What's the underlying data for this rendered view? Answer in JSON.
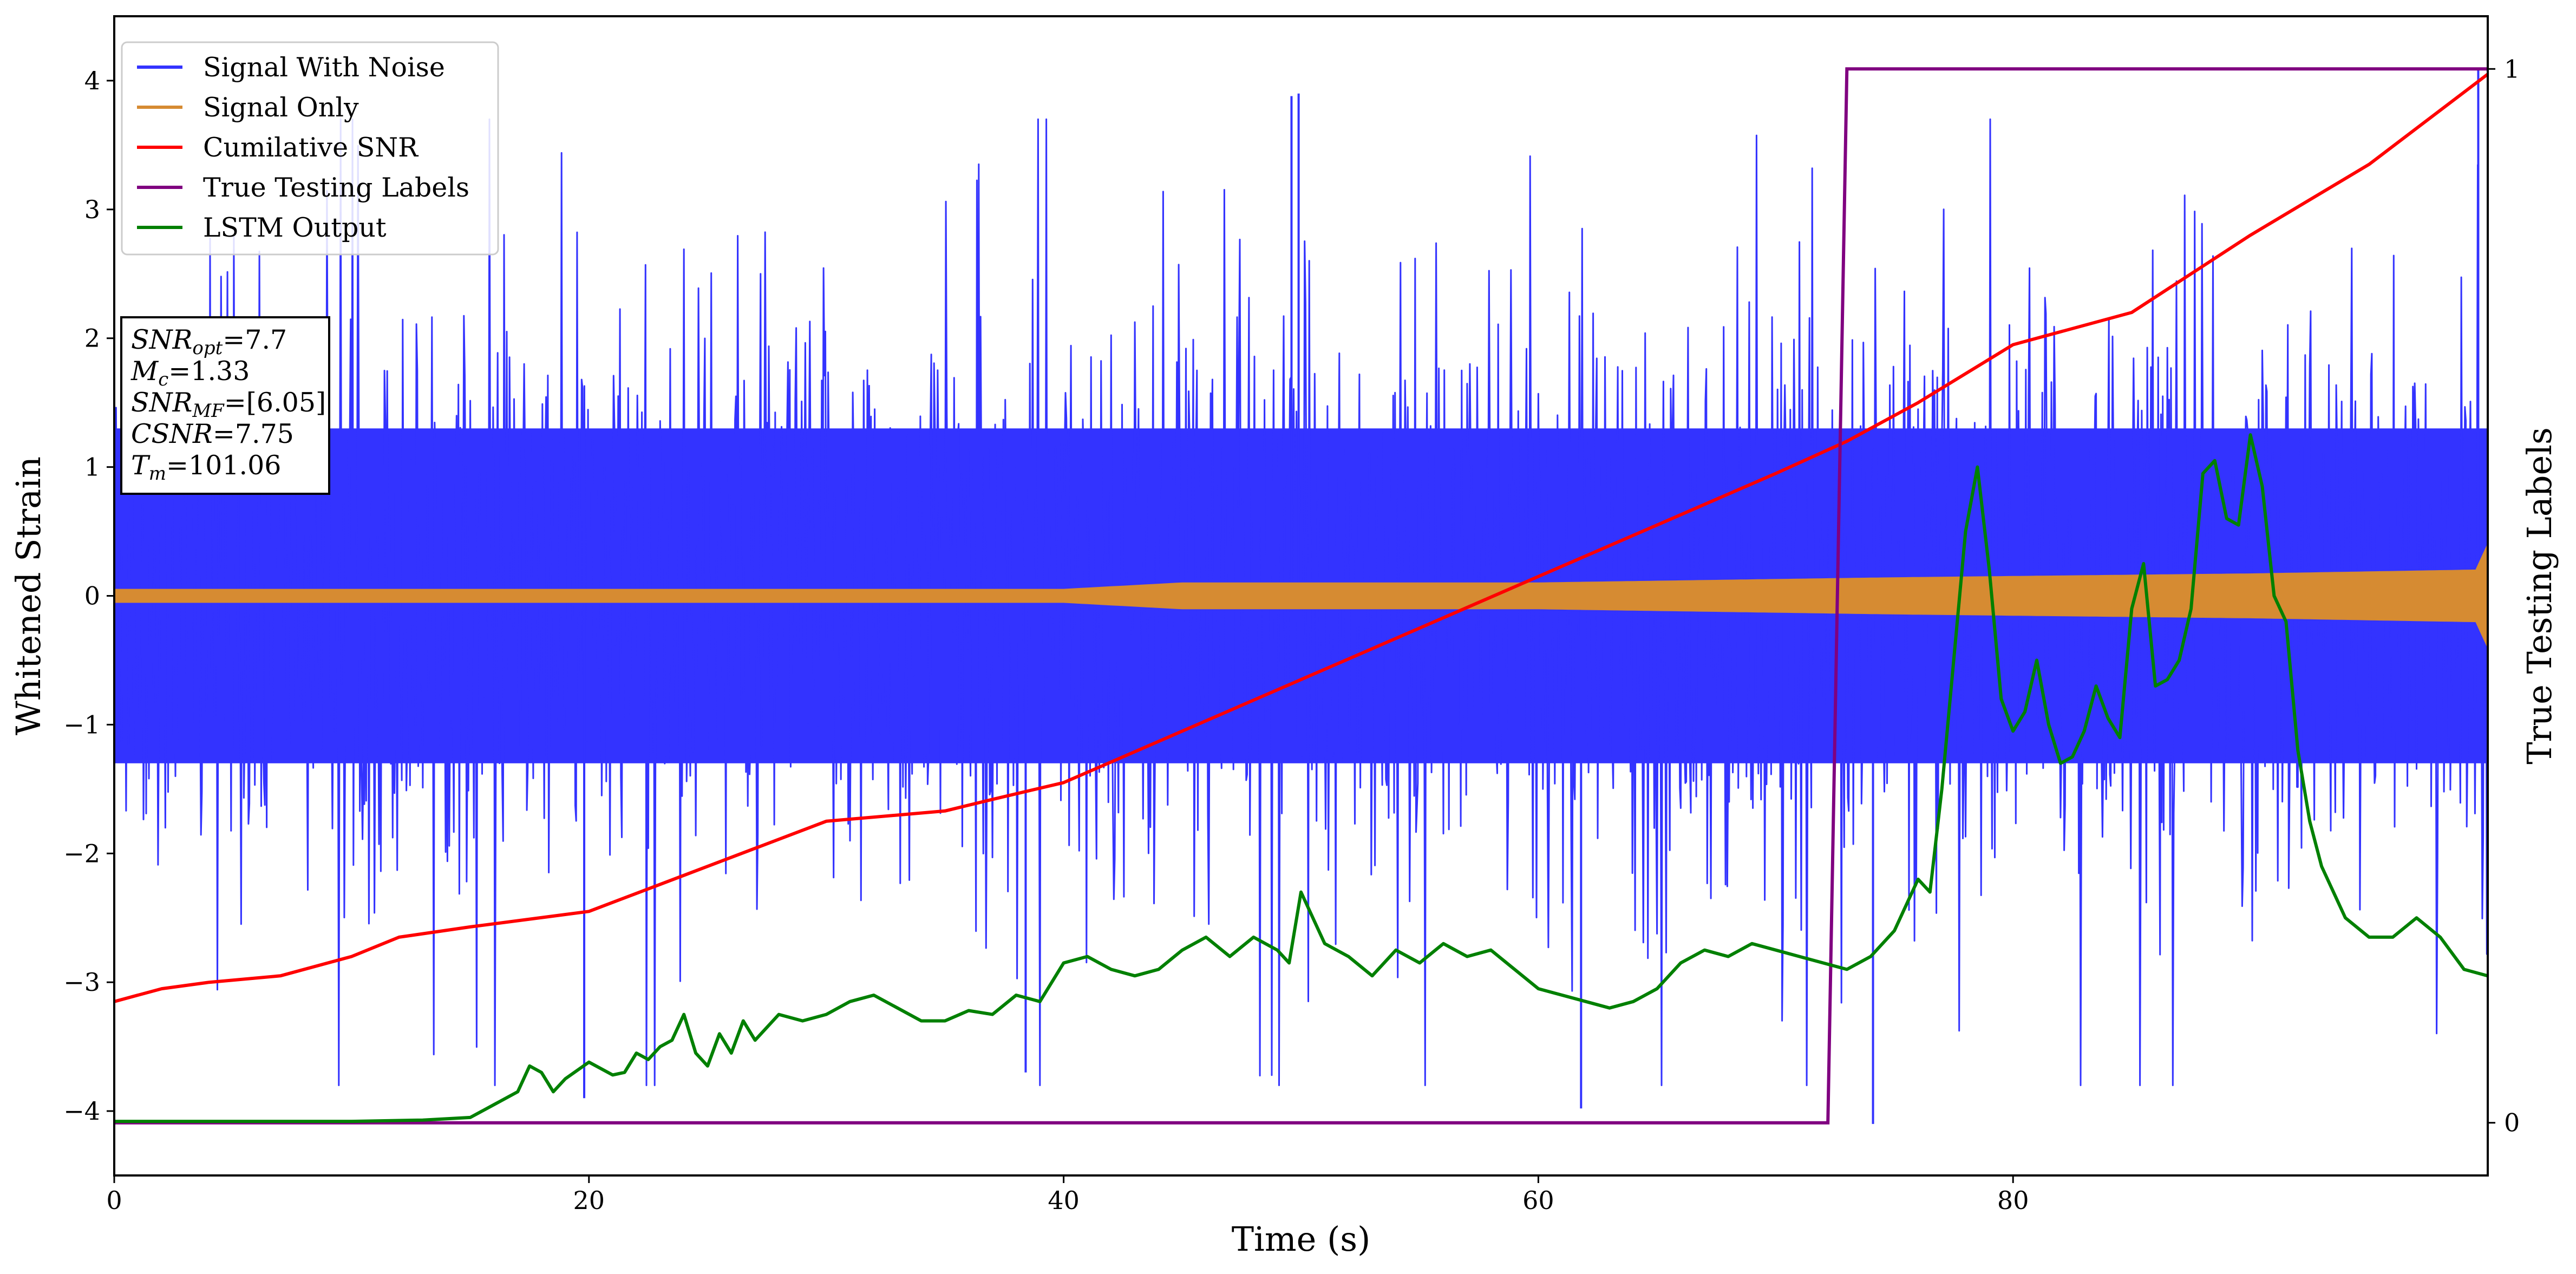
{
  "chart_data": {
    "type": "line",
    "xlabel": "Time (s)",
    "ylabel": "Whitened Strain",
    "y2label": "True Testing Labels",
    "xlim": [
      0,
      100
    ],
    "ylim": [
      -4.5,
      4.5
    ],
    "y2lim": [
      -0.05,
      1.05
    ],
    "x_ticks": [
      0,
      20,
      40,
      60,
      80
    ],
    "y_ticks": [
      -4,
      -3,
      -2,
      -1,
      0,
      1,
      2,
      3,
      4
    ],
    "y2_ticks": [
      0,
      1
    ],
    "grid": false,
    "legend_position": "top-left",
    "annotation": [
      {
        "base": "SNR",
        "sub": "opt",
        "value": "=7.7"
      },
      {
        "base": "M",
        "sub": "c",
        "value": "=1.33"
      },
      {
        "base": "SNR",
        "sub": "MF",
        "value": "=[6.05]"
      },
      {
        "base": "CSNR",
        "sub": "",
        "value": "=7.75"
      },
      {
        "base": "T",
        "sub": "m",
        "value": "=101.06"
      }
    ],
    "series": [
      {
        "name": "Signal With Noise",
        "axis": "left",
        "color": "#3333ff",
        "kind": "noise",
        "band_center": 0.0,
        "band_halfwidth": 1.3,
        "peak_max": 3.9,
        "trough_min": -4.1
      },
      {
        "name": "Signal Only",
        "axis": "left",
        "color": "#d68b32",
        "kind": "envelope",
        "x": [
          0,
          20,
          40,
          45,
          60,
          75,
          80,
          90,
          99.5,
          100
        ],
        "amplitude": [
          0.05,
          0.05,
          0.05,
          0.1,
          0.1,
          0.14,
          0.15,
          0.17,
          0.2,
          0.4
        ]
      },
      {
        "name": "Cumilative SNR",
        "axis": "left",
        "color": "#ff0000",
        "x": [
          0,
          2,
          4,
          7,
          10,
          12,
          15,
          20,
          25,
          30,
          35,
          37,
          40,
          45,
          50,
          55,
          60,
          65,
          70,
          73,
          76,
          80,
          85,
          90,
          95,
          100
        ],
        "y": [
          -3.15,
          -3.05,
          -3.0,
          -2.95,
          -2.8,
          -2.65,
          -2.57,
          -2.45,
          -2.1,
          -1.75,
          -1.67,
          -1.58,
          -1.45,
          -1.05,
          -0.65,
          -0.25,
          0.15,
          0.55,
          0.95,
          1.2,
          1.5,
          1.95,
          2.2,
          2.8,
          3.35,
          4.05
        ]
      },
      {
        "name": "True Testing Labels",
        "axis": "right",
        "color": "#800080",
        "x": [
          0,
          72.2,
          73,
          100
        ],
        "y": [
          0,
          0,
          1,
          1
        ]
      },
      {
        "name": "LSTM Output",
        "axis": "left",
        "color": "#008000",
        "x": [
          0,
          10,
          13,
          15,
          16,
          17,
          17.5,
          18,
          18.5,
          19,
          20,
          21,
          21.5,
          22,
          22.5,
          23,
          23.5,
          24,
          24.5,
          25,
          25.5,
          26,
          26.5,
          27,
          28,
          29,
          30,
          31,
          32,
          33,
          34,
          35,
          36,
          37,
          38,
          39,
          40,
          41,
          42,
          43,
          44,
          45,
          46,
          47,
          48,
          49,
          49.5,
          50,
          51,
          52,
          53,
          54,
          55,
          56,
          57,
          58,
          60,
          62,
          63,
          64,
          65,
          66,
          67,
          68,
          69,
          70,
          71,
          72,
          73,
          74,
          75,
          76,
          76.5,
          77,
          77.5,
          78,
          78.5,
          79,
          79.5,
          80,
          80.5,
          81,
          81.5,
          82,
          82.5,
          83,
          83.5,
          84,
          84.5,
          85,
          85.5,
          86,
          86.5,
          87,
          87.5,
          88,
          88.5,
          89,
          89.5,
          90,
          90.5,
          91,
          91.5,
          92,
          92.5,
          93,
          94,
          95,
          96,
          97,
          98,
          99,
          100
        ],
        "y": [
          -4.08,
          -4.08,
          -4.07,
          -4.05,
          -3.95,
          -3.85,
          -3.65,
          -3.7,
          -3.85,
          -3.75,
          -3.62,
          -3.72,
          -3.7,
          -3.55,
          -3.6,
          -3.5,
          -3.45,
          -3.25,
          -3.55,
          -3.65,
          -3.4,
          -3.55,
          -3.3,
          -3.45,
          -3.25,
          -3.3,
          -3.25,
          -3.15,
          -3.1,
          -3.2,
          -3.3,
          -3.3,
          -3.22,
          -3.25,
          -3.1,
          -3.15,
          -2.85,
          -2.8,
          -2.9,
          -2.95,
          -2.9,
          -2.75,
          -2.65,
          -2.8,
          -2.65,
          -2.75,
          -2.85,
          -2.3,
          -2.7,
          -2.8,
          -2.95,
          -2.75,
          -2.85,
          -2.7,
          -2.8,
          -2.75,
          -3.05,
          -3.15,
          -3.2,
          -3.15,
          -3.05,
          -2.85,
          -2.75,
          -2.8,
          -2.7,
          -2.75,
          -2.8,
          -2.85,
          -2.9,
          -2.8,
          -2.6,
          -2.2,
          -2.3,
          -1.5,
          -0.5,
          0.5,
          1.0,
          0.2,
          -0.8,
          -1.05,
          -0.9,
          -0.5,
          -1.0,
          -1.3,
          -1.25,
          -1.05,
          -0.7,
          -0.95,
          -1.1,
          -0.1,
          0.25,
          -0.7,
          -0.65,
          -0.5,
          -0.1,
          0.95,
          1.05,
          0.6,
          0.55,
          1.25,
          0.85,
          0.0,
          -0.2,
          -1.2,
          -1.75,
          -2.1,
          -2.5,
          -2.65,
          -2.65,
          -2.5,
          -2.65,
          -2.9,
          -2.95
        ]
      }
    ]
  }
}
